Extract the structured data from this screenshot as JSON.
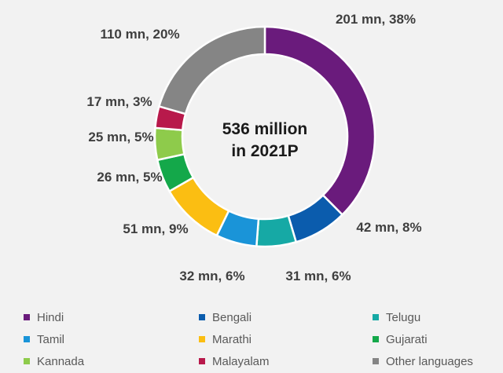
{
  "chart_data": {
    "type": "pie",
    "subtype": "donut",
    "center_label": [
      "536 million",
      "in 2021P"
    ],
    "categories": [
      "Hindi",
      "Bengali",
      "Telugu",
      "Tamil",
      "Marathi",
      "Gujarati",
      "Kannada",
      "Malayalam",
      "Other languages"
    ],
    "values": [
      201,
      42,
      31,
      32,
      51,
      26,
      25,
      17,
      110
    ],
    "unit": "mn",
    "percentages": [
      38,
      8,
      6,
      6,
      9,
      5,
      5,
      3,
      20
    ],
    "data_labels": [
      "201 mn, 38%",
      "42 mn, 8%",
      "31 mn, 6%",
      "32 mn, 6%",
      "51 mn, 9%",
      "26 mn, 5%",
      "25 mn, 5%",
      "17 mn, 3%",
      "110 mn, 20%"
    ],
    "colors": [
      "#6a1b7c",
      "#0b5cad",
      "#16a9a5",
      "#1a94d8",
      "#fbbe12",
      "#14a84a",
      "#8ecb4b",
      "#b8194b",
      "#858585"
    ],
    "legend_position": "bottom"
  }
}
